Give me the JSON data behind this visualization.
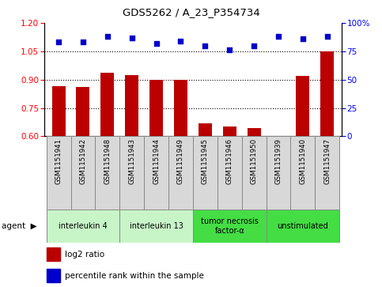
{
  "title": "GDS5262 / A_23_P354734",
  "samples": [
    "GSM1151941",
    "GSM1151942",
    "GSM1151948",
    "GSM1151943",
    "GSM1151944",
    "GSM1151949",
    "GSM1151945",
    "GSM1151946",
    "GSM1151950",
    "GSM1151939",
    "GSM1151940",
    "GSM1151947"
  ],
  "log2_ratio": [
    0.865,
    0.862,
    0.935,
    0.925,
    0.9,
    0.9,
    0.668,
    0.65,
    0.643,
    0.6,
    0.92,
    1.05
  ],
  "percentile": [
    83,
    83,
    88,
    87,
    82,
    84,
    80,
    76,
    80,
    88,
    86,
    88
  ],
  "agents": [
    {
      "label": "interleukin 4",
      "start": 0,
      "end": 3,
      "color": "#c8f5c8"
    },
    {
      "label": "interleukin 13",
      "start": 3,
      "end": 6,
      "color": "#c8f5c8"
    },
    {
      "label": "tumor necrosis\nfactor-α",
      "start": 6,
      "end": 9,
      "color": "#44dd44"
    },
    {
      "label": "unstimulated",
      "start": 9,
      "end": 12,
      "color": "#44dd44"
    }
  ],
  "ylim_left": [
    0.6,
    1.2
  ],
  "ylim_right": [
    0,
    100
  ],
  "yticks_left": [
    0.6,
    0.75,
    0.9,
    1.05,
    1.2
  ],
  "yticks_right": [
    0,
    25,
    50,
    75,
    100
  ],
  "hlines": [
    0.75,
    0.9,
    1.05
  ],
  "bar_color": "#bb0000",
  "dot_color": "#0000cc",
  "bar_width": 0.55,
  "bar_bottom": 0.6
}
